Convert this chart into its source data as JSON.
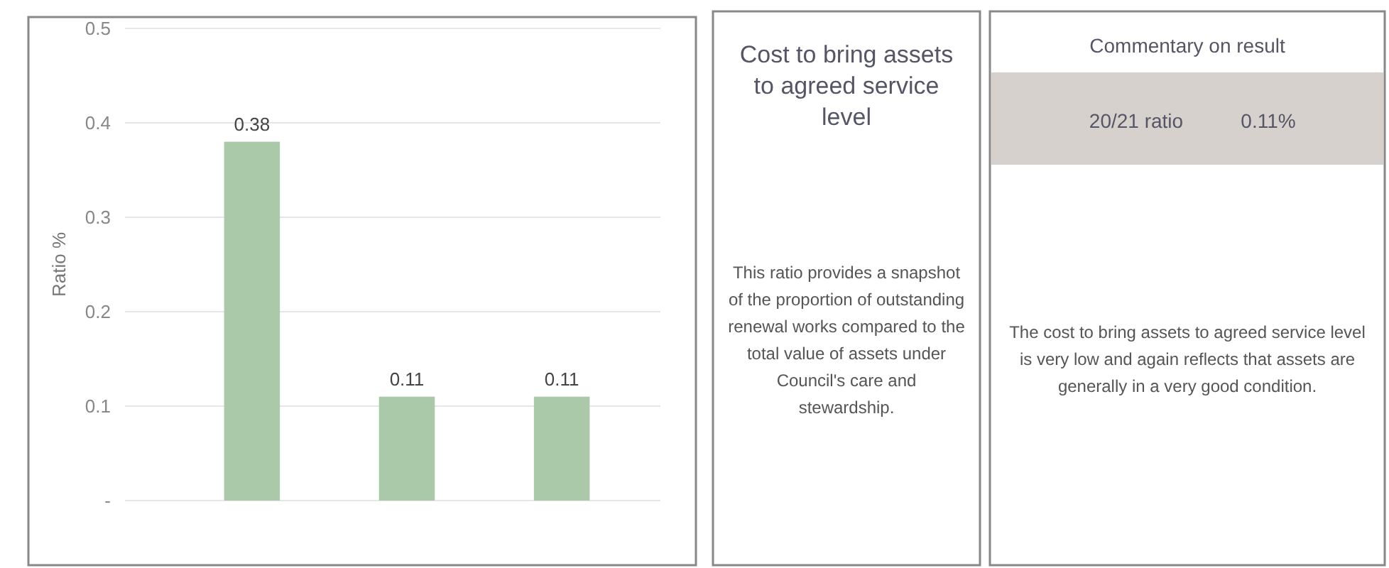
{
  "chart_data": [
    {
      "type": "bar",
      "categories": [
        null,
        null,
        null
      ],
      "values": [
        0.38,
        0.11,
        0.11
      ],
      "color": "#a9c9a9",
      "data_labels": true,
      "ylabel": "Ratio %",
      "ylim": [
        0,
        0.5
      ],
      "yticks": [
        {
          "value": 0,
          "label": "-"
        },
        0.1,
        0.2,
        0.3,
        0.4,
        0.5
      ],
      "grid": "y"
    },
    {
      "type": "other",
      "title": "Cost to bring assets to agreed service level",
      "annotations": [
        "This ratio provides a snapshot of the proportion of outstanding renewal works compared to the total value of assets under Council's care and stewardship."
      ]
    },
    {
      "type": "other",
      "title": "Commentary on result",
      "annotations": [
        "20/21 ratio",
        "0.11%",
        "The cost to bring assets to agreed service level is very low and again reflects that assets are generally in a very good condition."
      ]
    }
  ]
}
